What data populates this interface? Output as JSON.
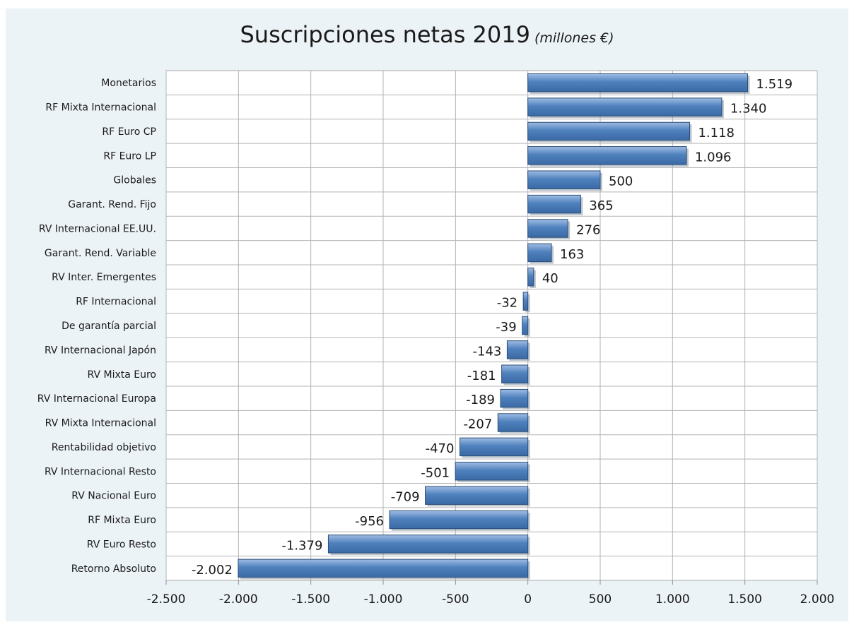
{
  "chart_data": {
    "type": "bar",
    "orientation": "horizontal",
    "title": "Suscripciones netas 2019",
    "subtitle": "(millones €)",
    "xlabel": "",
    "ylabel": "",
    "xlim": [
      -2500,
      2000
    ],
    "x_ticks": [
      -2500,
      -2000,
      -1500,
      -1000,
      -500,
      0,
      500,
      1000,
      1500,
      2000
    ],
    "x_tick_labels": [
      "-2.500",
      "-2.000",
      "-1.500",
      "-1.000",
      "-500",
      "0",
      "500",
      "1.000",
      "1.500",
      "2.000"
    ],
    "grid": true,
    "bar_color": "#4f81bd",
    "categories": [
      "Monetarios",
      "RF Mixta Internacional",
      "RF Euro CP",
      "RF Euro LP",
      "Globales",
      "Garant. Rend. Fijo",
      "RV Internacional EE.UU.",
      "Garant. Rend. Variable",
      "RV Inter. Emergentes",
      "RF Internacional",
      "De garantía parcial",
      "RV Internacional Japón",
      "RV Mixta Euro",
      "RV Internacional Europa",
      "RV Mixta Internacional",
      "Rentabilidad objetivo",
      "RV Internacional Resto",
      "RV Nacional Euro",
      "RF Mixta Euro",
      "RV Euro Resto",
      "Retorno Absoluto"
    ],
    "values": [
      1519,
      1340,
      1118,
      1096,
      500,
      365,
      276,
      163,
      40,
      -32,
      -39,
      -143,
      -181,
      -189,
      -207,
      -470,
      -501,
      -709,
      -956,
      -1379,
      -2002
    ],
    "value_labels": [
      "1.519",
      "1.340",
      "1.118",
      "1.096",
      "500",
      "365",
      "276",
      "163",
      "40",
      "-32",
      "-39",
      "-143",
      "-181",
      "-189",
      "-207",
      "-470",
      "-501",
      "-709",
      "-956",
      "-1.379",
      "-2.002"
    ]
  }
}
